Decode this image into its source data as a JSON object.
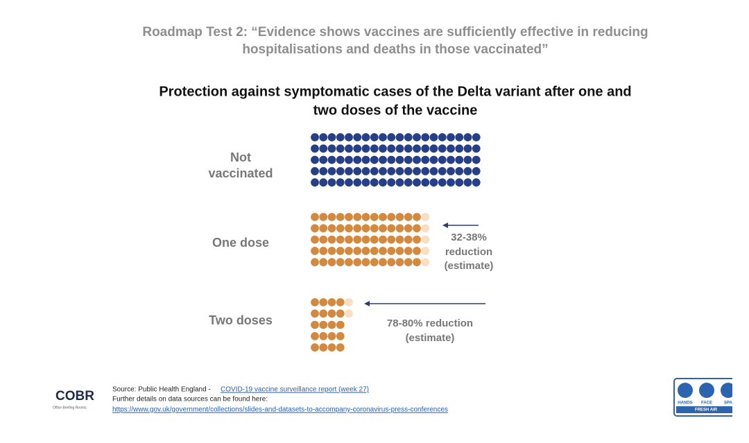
{
  "header": {
    "title": [
      "Roadmap Test 2: “Evidence shows vaccines are sufficiently effective in reducing",
      "hospitalisations and deaths in those vaccinated”"
    ]
  },
  "chart_data": {
    "type": "dots",
    "title": [
      "Protection against symptomatic cases of the Delta variant after one and",
      "two doses of the vaccine"
    ],
    "categories": [
      [
        "Not",
        "vaccinated"
      ],
      [
        "One dose"
      ],
      [
        "Two doses"
      ]
    ],
    "values": [
      100,
      65,
      20
    ],
    "range_values": [
      0,
      5,
      2
    ],
    "colors": [
      "#263f86",
      "#d38a3e",
      "#d38a3e"
    ],
    "range_color": "#f8dfc4",
    "annotations": [
      [
        "32-38%",
        "reduction",
        "(estimate)"
      ],
      [
        "78-80% reduction",
        "(estimate)"
      ]
    ]
  },
  "footer": {
    "source_prefix": "Source: Public Health England - ",
    "source_link": "COVID-19 vaccine surveillance report (week 27)",
    "details": "Further details on data sources can be found here:",
    "url": "https://www.gov.uk/government/collections/slides-and-datasets-to-accompany-coronavirus-press-conferences",
    "logo_left": "COBR",
    "logo_left_sub": "Office Briefing Rooms",
    "logo_right": [
      "HANDS",
      "FACE",
      "SPA"
    ],
    "logo_right_sub": "FRESH AIR"
  }
}
